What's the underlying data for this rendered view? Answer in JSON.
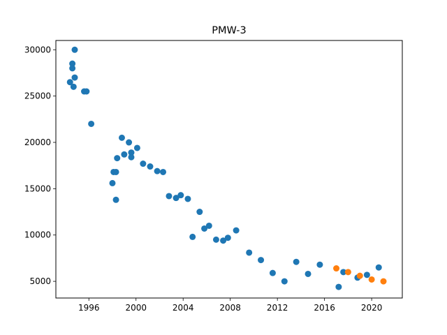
{
  "chart_data": {
    "type": "scatter",
    "title": "PMW-3",
    "xlabel": "",
    "ylabel": "",
    "xlim": [
      1993.2,
      2022.6
    ],
    "ylim": [
      3200,
      31000
    ],
    "x_ticks": [
      1996,
      2000,
      2004,
      2008,
      2012,
      2016,
      2020
    ],
    "y_ticks": [
      5000,
      10000,
      15000,
      20000,
      25000,
      30000
    ],
    "grid": false,
    "legend": "none",
    "series": [
      {
        "color": "#1f77b4",
        "points": [
          [
            1994.4,
            26500
          ],
          [
            1994.6,
            28500
          ],
          [
            1994.6,
            28000
          ],
          [
            1994.8,
            30000
          ],
          [
            1994.8,
            27000
          ],
          [
            1994.7,
            26000
          ],
          [
            1995.6,
            25500
          ],
          [
            1995.8,
            25500
          ],
          [
            1996.2,
            22000
          ],
          [
            1998.0,
            15600
          ],
          [
            1998.1,
            16800
          ],
          [
            1998.3,
            16800
          ],
          [
            1998.3,
            13800
          ],
          [
            1998.4,
            18300
          ],
          [
            1998.8,
            20500
          ],
          [
            1999.0,
            18700
          ],
          [
            1999.4,
            20000
          ],
          [
            1999.6,
            18900
          ],
          [
            1999.6,
            18400
          ],
          [
            2000.1,
            19400
          ],
          [
            2000.6,
            17700
          ],
          [
            2001.2,
            17400
          ],
          [
            2001.8,
            16900
          ],
          [
            2002.3,
            16800
          ],
          [
            2002.8,
            14200
          ],
          [
            2003.4,
            14000
          ],
          [
            2003.8,
            14300
          ],
          [
            2004.4,
            13900
          ],
          [
            2004.8,
            9800
          ],
          [
            2005.4,
            12500
          ],
          [
            2005.8,
            10700
          ],
          [
            2006.2,
            11000
          ],
          [
            2006.8,
            9500
          ],
          [
            2007.4,
            9400
          ],
          [
            2007.8,
            9700
          ],
          [
            2008.5,
            10500
          ],
          [
            2009.6,
            8100
          ],
          [
            2010.6,
            7300
          ],
          [
            2011.6,
            5900
          ],
          [
            2012.6,
            5000
          ],
          [
            2013.6,
            7100
          ],
          [
            2014.6,
            5800
          ],
          [
            2015.6,
            6800
          ],
          [
            2017.2,
            4400
          ],
          [
            2017.6,
            6000
          ],
          [
            2018.8,
            5400
          ],
          [
            2019.6,
            5700
          ],
          [
            2020.6,
            6500
          ]
        ]
      },
      {
        "color": "#ff7f0e",
        "points": [
          [
            2017.0,
            6400
          ],
          [
            2018.0,
            6000
          ],
          [
            2019.0,
            5600
          ],
          [
            2020.0,
            5200
          ],
          [
            2021.0,
            5000
          ]
        ]
      }
    ]
  }
}
